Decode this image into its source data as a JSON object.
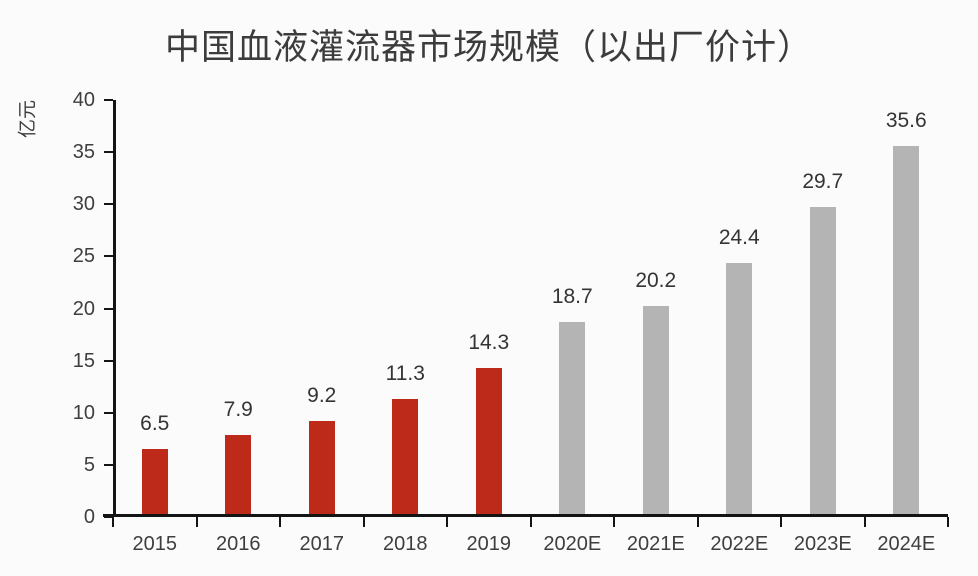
{
  "title": "中国血液灌流器市场规模（以出厂价计）",
  "colors": {
    "actual": "#bd2a19",
    "estimate": "#b5b4b5",
    "axis": "#141414",
    "label_text": "#3e3e3e",
    "title_text": "#3c3c3c",
    "background": "#fcfbfc"
  },
  "chart_data": {
    "type": "bar",
    "title": "中国血液灌流器市场规模（以出厂价计）",
    "xlabel": "",
    "ylabel": "亿元",
    "categories": [
      "2015",
      "2016",
      "2017",
      "2018",
      "2019",
      "2020E",
      "2021E",
      "2022E",
      "2023E",
      "2024E"
    ],
    "values": [
      6.5,
      7.9,
      9.2,
      11.3,
      14.3,
      18.7,
      20.2,
      24.4,
      29.7,
      35.6
    ],
    "bar_roles": [
      "actual",
      "actual",
      "actual",
      "actual",
      "actual",
      "estimate",
      "estimate",
      "estimate",
      "estimate",
      "estimate"
    ],
    "data_labels": [
      "6.5",
      "7.9",
      "9.2",
      "11.3",
      "14.3",
      "18.7",
      "20.2",
      "24.4",
      "29.7",
      "35.6"
    ],
    "ylim": [
      0,
      40
    ],
    "yticks": [
      0,
      5,
      10,
      15,
      20,
      25,
      30,
      35,
      40
    ],
    "grid": false,
    "legend_position": "none"
  }
}
